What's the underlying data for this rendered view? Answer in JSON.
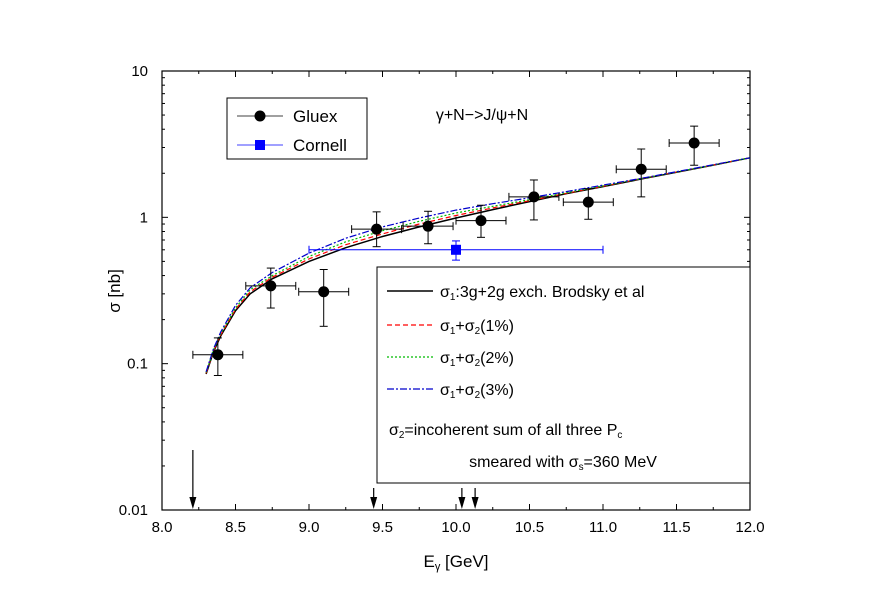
{
  "chart_data": {
    "type": "scatter",
    "title": "γ+N−>J/ψ+N",
    "xlabel": "E",
    "xlabel_sub": "γ",
    "xlabel_unit": " [GeV]",
    "ylabel": "σ [nb]",
    "xlim": [
      8.0,
      12.0
    ],
    "ylim": [
      0.01,
      10
    ],
    "yscale": "log",
    "grid": false,
    "x_ticks": [
      "8.0",
      "8.5",
      "9.0",
      "9.5",
      "10.0",
      "10.5",
      "11.0",
      "11.5",
      "12.0"
    ],
    "y_ticks": [
      "0.01",
      "0.1",
      "1",
      "10"
    ],
    "data_series": [
      {
        "name": "Gluex",
        "marker": "circle",
        "color": "#000000",
        "points": [
          {
            "x": 8.38,
            "y": 0.115,
            "xerr": 0.17,
            "yerr_low": 0.032,
            "yerr_high": 0.035
          },
          {
            "x": 8.74,
            "y": 0.34,
            "xerr": 0.17,
            "yerr_low": 0.1,
            "yerr_high": 0.11
          },
          {
            "x": 9.1,
            "y": 0.31,
            "xerr": 0.17,
            "yerr_low": 0.13,
            "yerr_high": 0.13
          },
          {
            "x": 9.46,
            "y": 0.83,
            "xerr": 0.17,
            "yerr_low": 0.2,
            "yerr_high": 0.26
          },
          {
            "x": 9.81,
            "y": 0.87,
            "xerr": 0.17,
            "yerr_low": 0.21,
            "yerr_high": 0.23
          },
          {
            "x": 10.17,
            "y": 0.95,
            "xerr": 0.17,
            "yerr_low": 0.22,
            "yerr_high": 0.26
          },
          {
            "x": 10.53,
            "y": 1.38,
            "xerr": 0.17,
            "yerr_low": 0.42,
            "yerr_high": 0.42
          },
          {
            "x": 10.9,
            "y": 1.27,
            "xerr": 0.17,
            "yerr_low": 0.3,
            "yerr_high": 0.3
          },
          {
            "x": 11.26,
            "y": 2.13,
            "xerr": 0.17,
            "yerr_low": 0.75,
            "yerr_high": 0.8
          },
          {
            "x": 11.62,
            "y": 3.22,
            "xerr": 0.17,
            "yerr_low": 0.95,
            "yerr_high": 0.98
          }
        ]
      },
      {
        "name": "Cornell",
        "marker": "square",
        "color": "#0000ff",
        "points": [
          {
            "x": 10.0,
            "y": 0.6,
            "xerr": 1.0,
            "yerr_low": 0.09,
            "yerr_high": 0.09
          }
        ]
      }
    ],
    "curve_series": [
      {
        "name_parts": [
          {
            "t": "σ"
          },
          {
            "t": "1",
            "sub": true
          },
          {
            "t": ":3g+2g exch. Brodsky et al"
          }
        ],
        "color": "#000000",
        "dash": "",
        "width": 1.5,
        "x": [
          8.3,
          8.35,
          8.4,
          8.5,
          8.6,
          8.75,
          9.0,
          9.25,
          9.5,
          9.75,
          10.0,
          10.25,
          10.5,
          10.75,
          11.0,
          11.25,
          11.5,
          11.75,
          12.0
        ],
        "y": [
          0.085,
          0.12,
          0.155,
          0.23,
          0.3,
          0.38,
          0.5,
          0.62,
          0.74,
          0.86,
          0.99,
          1.13,
          1.28,
          1.45,
          1.62,
          1.82,
          2.03,
          2.27,
          2.55
        ]
      },
      {
        "name_parts": [
          {
            "t": "σ"
          },
          {
            "t": "1",
            "sub": true
          },
          {
            "t": "+σ"
          },
          {
            "t": "2",
            "sub": true
          },
          {
            "t": "(1%)"
          }
        ],
        "color": "#ff0000",
        "dash": "5,3",
        "width": 1.2,
        "x": [
          8.3,
          8.35,
          8.4,
          8.5,
          8.6,
          8.75,
          9.0,
          9.25,
          9.5,
          9.75,
          10.0,
          10.25,
          10.5,
          10.75,
          11.0,
          11.25,
          11.5,
          11.75,
          12.0
        ],
        "y": [
          0.086,
          0.122,
          0.158,
          0.235,
          0.31,
          0.39,
          0.52,
          0.65,
          0.77,
          0.9,
          1.03,
          1.16,
          1.3,
          1.46,
          1.63,
          1.83,
          2.04,
          2.28,
          2.55
        ]
      },
      {
        "name_parts": [
          {
            "t": "σ"
          },
          {
            "t": "1",
            "sub": true
          },
          {
            "t": "+σ"
          },
          {
            "t": "2",
            "sub": true
          },
          {
            "t": "(2%)"
          }
        ],
        "color": "#00bb00",
        "dash": "2,2",
        "width": 1.2,
        "x": [
          8.3,
          8.35,
          8.4,
          8.5,
          8.6,
          8.75,
          9.0,
          9.25,
          9.5,
          9.75,
          10.0,
          10.25,
          10.5,
          10.75,
          11.0,
          11.25,
          11.5,
          11.75,
          12.0
        ],
        "y": [
          0.087,
          0.124,
          0.161,
          0.24,
          0.32,
          0.4,
          0.54,
          0.68,
          0.81,
          0.94,
          1.07,
          1.19,
          1.32,
          1.47,
          1.64,
          1.83,
          2.04,
          2.28,
          2.55
        ]
      },
      {
        "name_parts": [
          {
            "t": "σ"
          },
          {
            "t": "1",
            "sub": true
          },
          {
            "t": "+σ"
          },
          {
            "t": "2",
            "sub": true
          },
          {
            "t": "(3%)"
          }
        ],
        "color": "#0000cc",
        "dash": "7,2,2,2",
        "width": 1.2,
        "x": [
          8.3,
          8.35,
          8.4,
          8.5,
          8.6,
          8.75,
          9.0,
          9.25,
          9.5,
          9.75,
          10.0,
          10.25,
          10.5,
          10.75,
          11.0,
          11.25,
          11.5,
          11.75,
          12.0
        ],
        "y": [
          0.088,
          0.126,
          0.165,
          0.25,
          0.33,
          0.42,
          0.57,
          0.72,
          0.86,
          0.99,
          1.12,
          1.24,
          1.36,
          1.5,
          1.66,
          1.84,
          2.05,
          2.29,
          2.55
        ]
      }
    ],
    "arrows_x": [
      8.21,
      9.44,
      10.04,
      10.13
    ],
    "legend_note": [
      [
        {
          "t": "σ"
        },
        {
          "t": "2",
          "sub": true
        },
        {
          "t": "=incoherent sum of all three P"
        },
        {
          "t": "c",
          "sub": true
        }
      ],
      [
        {
          "t": "smeared with σ"
        },
        {
          "t": "s",
          "sub": true
        },
        {
          "t": "=360 MeV"
        }
      ]
    ],
    "legend_data_placement": "top-left",
    "legend_curves_placement": "bottom-right"
  }
}
